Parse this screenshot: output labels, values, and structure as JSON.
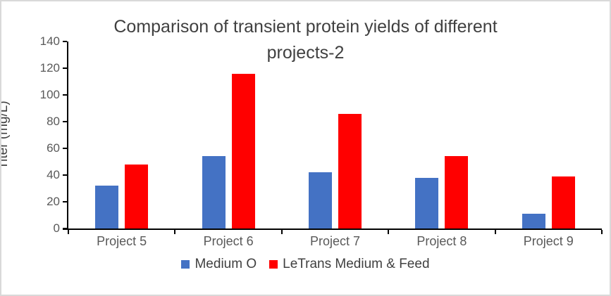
{
  "frame": {
    "background": "#ffffff",
    "border_color": "#d9d9d9"
  },
  "title_lines": {
    "line1": "Comparison of transient protein yields of different",
    "line2": "projects-2"
  },
  "chart_data": {
    "type": "bar",
    "title": "Comparison of transient protein yields of different projects-2",
    "categories": [
      "Project 5",
      "Project 6",
      "Project 7",
      "Project 8",
      "Project 9"
    ],
    "series": [
      {
        "name": "Medium O",
        "color": "#4472C4",
        "values": [
          32,
          54,
          42,
          38,
          11
        ]
      },
      {
        "name": "LeTrans Medium & Feed",
        "color": "#FF0000",
        "values": [
          48,
          116,
          86,
          54,
          39
        ]
      }
    ],
    "xlabel": "",
    "ylabel": "Titer (mg/L)",
    "ylim": [
      0,
      140
    ],
    "yticks": [
      0,
      20,
      40,
      60,
      80,
      100,
      120,
      140
    ],
    "grid": false,
    "legend_position": "bottom",
    "axis_color": "#000000",
    "tick_label_color": "#595959",
    "title_color": "#404040"
  }
}
